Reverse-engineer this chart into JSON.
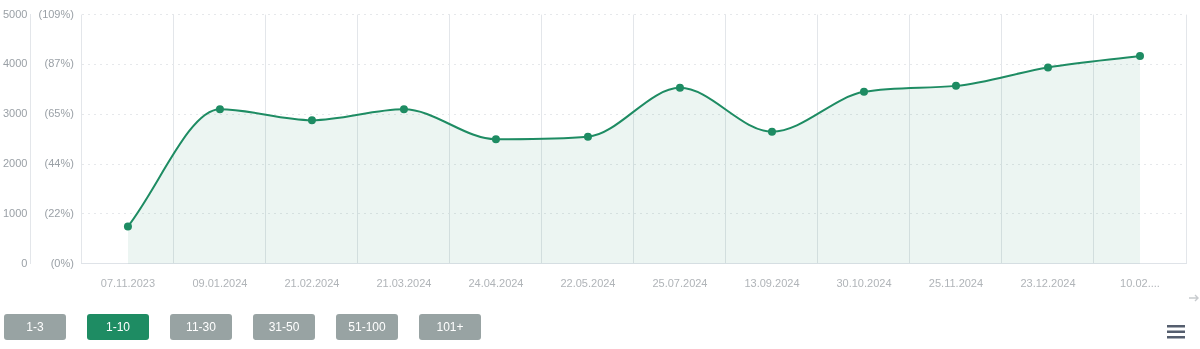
{
  "chart_data": {
    "type": "area",
    "categories": [
      "07.11.2023",
      "09.01.2024",
      "21.02.2024",
      "21.03.2024",
      "24.04.2024",
      "22.05.2024",
      "25.07.2024",
      "13.09.2024",
      "30.10.2024",
      "25.11.2024",
      "23.12.2024",
      "10.02...."
    ],
    "series": [
      {
        "color": "#1e8c63",
        "values": [
          750,
          3100,
          2880,
          3100,
          2500,
          2550,
          3530,
          2650,
          3450,
          3570,
          3940,
          4170
        ]
      }
    ],
    "ylim": [
      0,
      5000
    ],
    "yticks": [
      0,
      1000,
      2000,
      3000,
      4000,
      5000
    ],
    "y2lim": [
      0,
      109
    ],
    "y2ticks": [
      {
        "value": 0,
        "label": "(0%)"
      },
      {
        "value": 21.8,
        "label": "(22%)"
      },
      {
        "value": 43.6,
        "label": "(44%)"
      },
      {
        "value": 65.4,
        "label": "(65%)"
      },
      {
        "value": 87.2,
        "label": "(87%)"
      },
      {
        "value": 109,
        "label": "(109%)"
      }
    ],
    "grid": true,
    "marker": "circle",
    "annotations": [
      "1-3",
      "1-10",
      "11-30",
      "31-50",
      "51-100",
      "101+"
    ]
  }
}
